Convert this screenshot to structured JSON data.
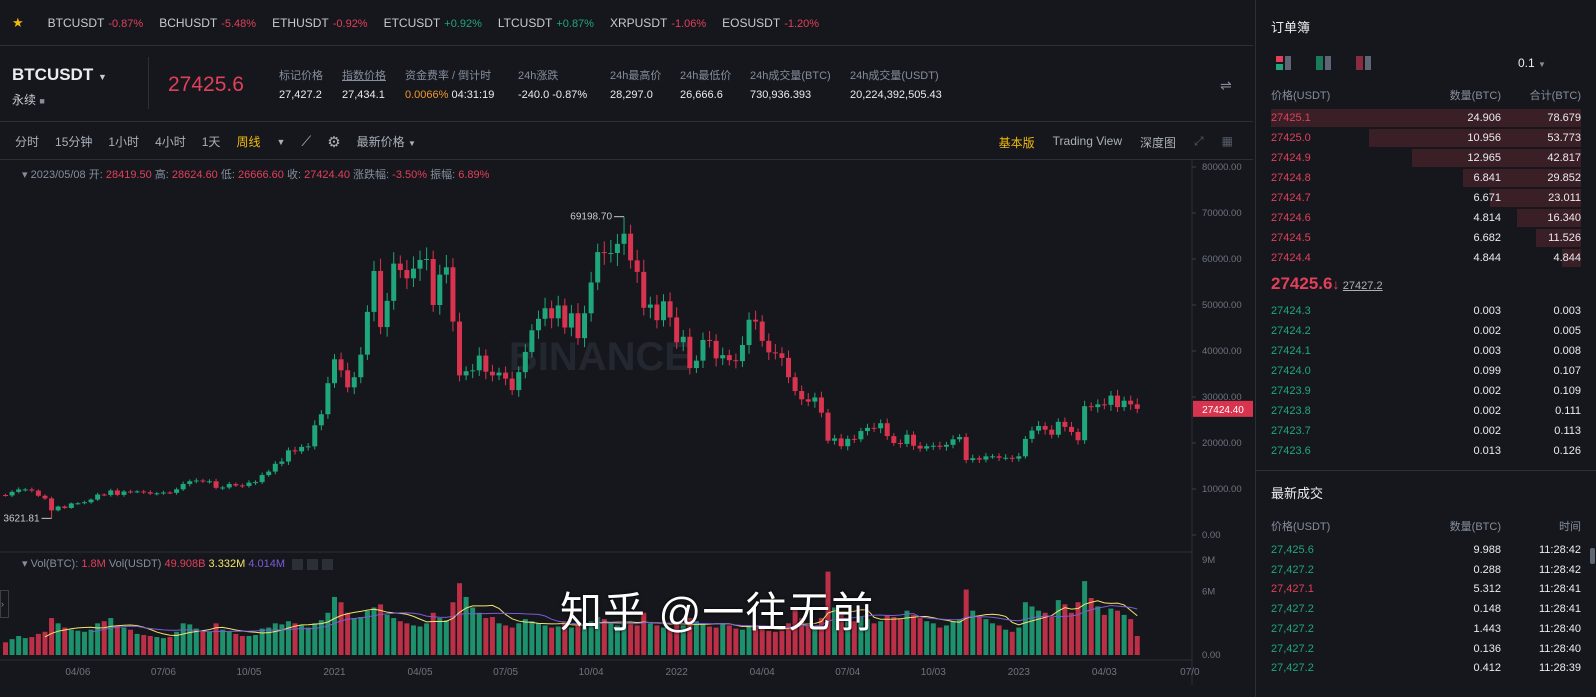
{
  "ticker": [
    {
      "symbol": "BTCUSDT",
      "change": "-0.87%",
      "dir": "down"
    },
    {
      "symbol": "BCHUSDT",
      "change": "-5.48%",
      "dir": "down"
    },
    {
      "symbol": "ETHUSDT",
      "change": "-0.92%",
      "dir": "down"
    },
    {
      "symbol": "ETCUSDT",
      "change": "+0.92%",
      "dir": "up"
    },
    {
      "symbol": "LTCUSDT",
      "change": "+0.87%",
      "dir": "up"
    },
    {
      "symbol": "XRPUSDT",
      "change": "-1.06%",
      "dir": "down"
    },
    {
      "symbol": "EOSUSDT",
      "change": "-1.20%",
      "dir": "down"
    }
  ],
  "header": {
    "symbol": "BTCUSDT",
    "contract": "永续",
    "last_price": "27425.6",
    "stats": [
      {
        "label": "标记价格",
        "value": "27,427.2"
      },
      {
        "label": "指数价格",
        "value": "27,434.1"
      },
      {
        "label": "资金费率 / 倒计时",
        "value": "0.0066%",
        "value2": "04:31:19"
      },
      {
        "label": "24h涨跌",
        "value": "-240.0 -0.87%"
      },
      {
        "label": "24h最高价",
        "value": "28,297.0"
      },
      {
        "label": "24h最低价",
        "value": "26,666.6"
      },
      {
        "label": "24h成交量(BTC)",
        "value": "730,936.393"
      },
      {
        "label": "24h成交量(USDT)",
        "value": "20,224,392,505.43"
      }
    ]
  },
  "toolbar": {
    "intervals": [
      "分时",
      "15分钟",
      "1小时",
      "4小时",
      "1天",
      "周线"
    ],
    "active_interval": "周线",
    "price_type": "最新价格",
    "views": [
      "基本版",
      "Trading View",
      "深度图"
    ],
    "active_view": "基本版"
  },
  "infoline": {
    "date": "2023/05/08",
    "open_label": "开:",
    "open": "28419.50",
    "high_label": "高:",
    "high": "28624.60",
    "low_label": "低:",
    "low": "26666.60",
    "close_label": "收:",
    "close": "27424.40",
    "chg_label": "涨跌幅:",
    "chg": "-3.50%",
    "amp_label": "振幅:",
    "amp": "6.89%"
  },
  "vol_legend": {
    "btc_label": "Vol(BTC):",
    "btc": "1.8M",
    "usdt_label": "Vol(USDT)",
    "usdt": "49.908B",
    "ma1": "3.332M",
    "ma2": "4.014M"
  },
  "chart_data": {
    "type": "candlestick",
    "interval": "1w",
    "first_week": "2020-01-20",
    "ylim": [
      0,
      80000
    ],
    "y_ticks": [
      "80000.00",
      "70000.00",
      "60000.00",
      "50000.00",
      "40000.00",
      "30000.00",
      "20000.00",
      "10000.00",
      "0.00"
    ],
    "current_price_label": "27424.40",
    "marked_high": {
      "label": "69198.70",
      "value": 69198.7,
      "week": "2021-11-08"
    },
    "marked_low": {
      "label": "3621.81",
      "value": 3621.81,
      "week": "2020-03-09"
    },
    "closes": [
      8600,
      9370,
      9900,
      9900,
      9650,
      8530,
      7950,
      5360,
      6190,
      5880,
      6860,
      6900,
      7120,
      7700,
      8800,
      8700,
      9680,
      8720,
      9450,
      9380,
      9470,
      9300,
      9000,
      9070,
      9240,
      9160,
      9930,
      11100,
      11680,
      11850,
      11650,
      11680,
      10250,
      10330,
      11080,
      10770,
      10660,
      11380,
      11500,
      13030,
      13780,
      15480,
      15970,
      18410,
      18180,
      19150,
      19270,
      23850,
      26250,
      33000,
      38200,
      35800,
      32100,
      34300,
      39200,
      48500,
      57400,
      45200,
      50900,
      59000,
      57600,
      55800,
      57900,
      59800,
      60000,
      50000,
      56600,
      58200,
      46400,
      34700,
      35600,
      35800,
      39000,
      35500,
      34700,
      35300,
      34000,
      31500,
      35400,
      39800,
      44500,
      47000,
      49300,
      47100,
      49900,
      45100,
      48200,
      42800,
      48200,
      54900,
      61500,
      61300,
      61300,
      63300,
      65500,
      59700,
      57200,
      49400,
      50100,
      46700,
      50800,
      47300,
      41900,
      43100,
      36300,
      37900,
      42400,
      42200,
      38400,
      39100,
      38000,
      37800,
      41300,
      46800,
      46400,
      42200,
      39700,
      39500,
      38500,
      34300,
      31300,
      29500,
      29000,
      29900,
      26600,
      20500,
      21000,
      19300,
      20900,
      20800,
      22600,
      23300,
      23200,
      24300,
      21500,
      20000,
      19800,
      21800,
      19400,
      18800,
      19300,
      19400,
      19200,
      19600,
      20800,
      21300,
      16300,
      16700,
      16400,
      17100,
      17100,
      16800,
      16800,
      16600,
      17100,
      20900,
      22700,
      23700,
      22900,
      21800,
      24600,
      23500,
      22400,
      20600,
      28000,
      27800,
      28400,
      28300,
      30300,
      27800,
      29200,
      28400,
      27424.4
    ],
    "first_open": 8700,
    "volume_ylim": [
      0,
      9
    ],
    "volume_unit": "M",
    "volume_y_ticks": [
      "9M",
      "6M",
      "0.00"
    ],
    "volumes": [
      1.2,
      1.5,
      1.8,
      1.6,
      1.7,
      2.0,
      2.2,
      3.5,
      3.0,
      2.6,
      2.4,
      2.3,
      2.2,
      2.4,
      3.0,
      3.2,
      3.5,
      2.8,
      2.6,
      2.4,
      2.0,
      1.9,
      1.8,
      1.7,
      1.6,
      1.7,
      2.2,
      3.0,
      2.9,
      2.5,
      2.3,
      2.2,
      3.0,
      2.4,
      2.2,
      2.0,
      1.8,
      1.8,
      1.9,
      2.5,
      2.6,
      3.0,
      2.9,
      3.2,
      3.0,
      2.8,
      2.6,
      3.0,
      3.3,
      4.0,
      5.5,
      5.0,
      4.0,
      3.5,
      3.6,
      4.2,
      4.5,
      4.8,
      3.8,
      3.5,
      3.2,
      3.0,
      2.8,
      2.7,
      3.0,
      4.0,
      3.5,
      3.3,
      5.0,
      6.8,
      5.5,
      4.5,
      4.0,
      3.5,
      3.6,
      3.0,
      2.8,
      2.6,
      3.0,
      3.4,
      3.2,
      3.0,
      2.8,
      2.6,
      2.7,
      3.2,
      2.6,
      3.0,
      2.8,
      3.2,
      3.6,
      3.4,
      3.0,
      2.8,
      3.0,
      2.9,
      2.8,
      4.0,
      3.0,
      2.8,
      2.6,
      2.4,
      3.0,
      2.8,
      3.5,
      3.2,
      2.9,
      2.7,
      2.6,
      3.0,
      2.8,
      2.5,
      2.4,
      2.8,
      2.6,
      2.5,
      2.3,
      2.2,
      2.3,
      3.0,
      4.5,
      3.5,
      2.8,
      2.6,
      3.5,
      7.9,
      4.5,
      3.8,
      3.5,
      3.2,
      3.6,
      3.4,
      3.0,
      3.2,
      3.8,
      3.6,
      3.4,
      4.2,
      3.8,
      3.5,
      3.2,
      3.0,
      2.6,
      2.8,
      3.2,
      3.4,
      6.2,
      4.2,
      3.6,
      3.4,
      3.0,
      2.8,
      2.4,
      2.2,
      2.6,
      5.0,
      4.6,
      4.2,
      4.0,
      3.6,
      5.2,
      4.8,
      4.0,
      5.0,
      7.0,
      5.4,
      4.6,
      3.8,
      4.4,
      4.2,
      3.8,
      3.4,
      1.8
    ],
    "x_ticks": [
      {
        "label": "04/06",
        "date": "2020-04-06"
      },
      {
        "label": "07/06",
        "date": "2020-07-06"
      },
      {
        "label": "10/05",
        "date": "2020-10-05"
      },
      {
        "label": "2021",
        "date": "2021-01-04"
      },
      {
        "label": "04/05",
        "date": "2021-04-05"
      },
      {
        "label": "07/05",
        "date": "2021-07-05"
      },
      {
        "label": "10/04",
        "date": "2021-10-04"
      },
      {
        "label": "2022",
        "date": "2022-01-03"
      },
      {
        "label": "04/04",
        "date": "2022-04-04"
      },
      {
        "label": "07/04",
        "date": "2022-07-04"
      },
      {
        "label": "10/03",
        "date": "2022-10-03"
      },
      {
        "label": "2023",
        "date": "2023-01-02"
      },
      {
        "label": "04/03",
        "date": "2023-04-03"
      },
      {
        "label": "07/0",
        "date": "2023-07-03"
      }
    ],
    "colors": {
      "up": "#1fa67a",
      "down": "#d8344f",
      "ma1": "#f3e46b",
      "ma2": "#7b5cd6"
    }
  },
  "orderbook": {
    "title": "订单簿",
    "precision": "0.1",
    "headers": [
      "价格(USDT)",
      "数量(BTC)",
      "合计(BTC)"
    ],
    "asks": [
      {
        "price": "27425.1",
        "qty": "24.906",
        "total": "78.679"
      },
      {
        "price": "27425.0",
        "qty": "10.956",
        "total": "53.773"
      },
      {
        "price": "27424.9",
        "qty": "12.965",
        "total": "42.817"
      },
      {
        "price": "27424.8",
        "qty": "6.841",
        "total": "29.852"
      },
      {
        "price": "27424.7",
        "qty": "6.671",
        "total": "23.011"
      },
      {
        "price": "27424.6",
        "qty": "4.814",
        "total": "16.340"
      },
      {
        "price": "27424.5",
        "qty": "6.682",
        "total": "11.526"
      },
      {
        "price": "27424.4",
        "qty": "4.844",
        "total": "4.844"
      }
    ],
    "mid_price": "27425.6",
    "mid_arrow": "↓",
    "mark_price": "27427.2",
    "bids": [
      {
        "price": "27424.3",
        "qty": "0.003",
        "total": "0.003"
      },
      {
        "price": "27424.2",
        "qty": "0.002",
        "total": "0.005"
      },
      {
        "price": "27424.1",
        "qty": "0.003",
        "total": "0.008"
      },
      {
        "price": "27424.0",
        "qty": "0.099",
        "total": "0.107"
      },
      {
        "price": "27423.9",
        "qty": "0.002",
        "total": "0.109"
      },
      {
        "price": "27423.8",
        "qty": "0.002",
        "total": "0.111"
      },
      {
        "price": "27423.7",
        "qty": "0.002",
        "total": "0.113"
      },
      {
        "price": "27423.6",
        "qty": "0.013",
        "total": "0.126"
      }
    ]
  },
  "trades": {
    "title": "最新成交",
    "headers": [
      "价格(USDT)",
      "数量(BTC)",
      "时间"
    ],
    "rows": [
      {
        "price": "27,425.6",
        "qty": "9.988",
        "time": "11:28:42",
        "side": "buy"
      },
      {
        "price": "27,427.2",
        "qty": "0.288",
        "time": "11:28:42",
        "side": "buy"
      },
      {
        "price": "27,427.1",
        "qty": "5.312",
        "time": "11:28:41",
        "side": "sell"
      },
      {
        "price": "27,427.2",
        "qty": "0.148",
        "time": "11:28:41",
        "side": "buy"
      },
      {
        "price": "27,427.2",
        "qty": "1.443",
        "time": "11:28:40",
        "side": "buy"
      },
      {
        "price": "27,427.2",
        "qty": "0.136",
        "time": "11:28:40",
        "side": "buy"
      },
      {
        "price": "27,427.2",
        "qty": "0.412",
        "time": "11:28:39",
        "side": "buy"
      }
    ]
  },
  "watermark": "知乎 @一往无前",
  "chart_watermark": "BINANCE"
}
